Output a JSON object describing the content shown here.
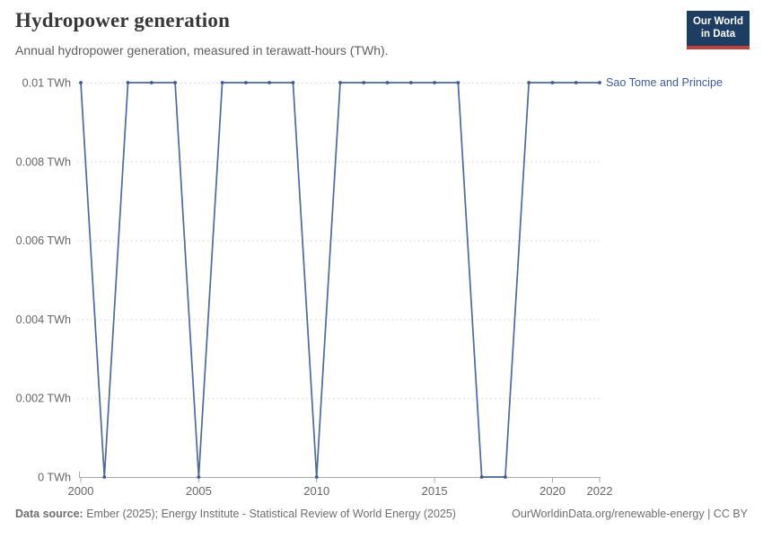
{
  "header": {
    "title": "Hydropower generation",
    "subtitle": "Annual hydropower generation, measured in terawatt-hours (TWh).",
    "logo": {
      "line1": "Our World",
      "line2": "in Data"
    }
  },
  "footer": {
    "source_label": "Data source:",
    "source_text": "Ember (2025); Energy Institute - Statistical Review of World Energy (2025)",
    "right_text": "OurWorldinData.org/renewable-energy | CC BY"
  },
  "colors": {
    "line": "#4c6a9c",
    "point": "#3d5a96",
    "entity_label": "#3d5c9e",
    "grid": "#dddddd",
    "axis": "#a8a8a8",
    "tick_text": "#666666",
    "logo_bg": "#1d3d63",
    "logo_red": "#c0403c"
  },
  "chart_data": {
    "type": "line",
    "title": "Hydropower generation",
    "subtitle": "Annual hydropower generation, measured in terawatt-hours (TWh).",
    "unit": "TWh",
    "grid": "dashed-horizontal",
    "legend_position": "end-of-line",
    "xlim": [
      2000,
      2022
    ],
    "ylim": [
      0,
      0.01
    ],
    "x": [
      2000,
      2001,
      2002,
      2003,
      2004,
      2005,
      2006,
      2007,
      2008,
      2009,
      2010,
      2011,
      2012,
      2013,
      2014,
      2015,
      2016,
      2017,
      2018,
      2019,
      2020,
      2021,
      2022
    ],
    "x_ticks": [
      2000,
      2005,
      2010,
      2015,
      2020,
      2022
    ],
    "y_ticks": [
      0,
      0.002,
      0.004,
      0.006,
      0.008,
      0.01
    ],
    "y_tick_labels": [
      "0 TWh",
      "0.002 TWh",
      "0.004 TWh",
      "0.006 TWh",
      "0.008 TWh",
      "0.01 TWh"
    ],
    "series": [
      {
        "name": "Sao Tome and Principe",
        "values": [
          0.01,
          0,
          0.01,
          0.01,
          0.01,
          0,
          0.01,
          0.01,
          0.01,
          0.01,
          0,
          0.01,
          0.01,
          0.01,
          0.01,
          0.01,
          0.01,
          0,
          0,
          0.01,
          0.01,
          0.01,
          0.01
        ]
      }
    ]
  }
}
